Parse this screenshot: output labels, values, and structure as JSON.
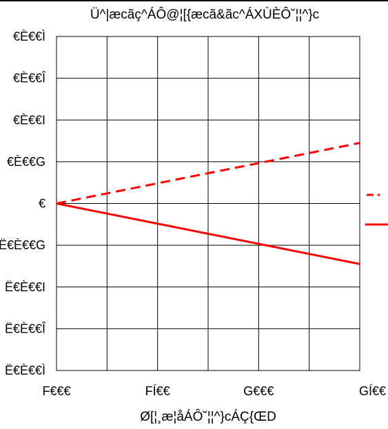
{
  "chart_data": {
    "type": "line",
    "title": "Ü^|æcãç^ÁÔ@¦[{æcã&ãc^ÁXÙÈÔ˘¦¦^}c",
    "xlabel": "Ø[¦¸æ¦åÁÔ˘¦¦^}cÁÇ{ŒD",
    "ylabel": "",
    "x_tick_values": [
      1000,
      1500,
      2000,
      2500
    ],
    "x_tick_labels": [
      "F€€€",
      "FÍ€€",
      "G€€€",
      "GÍ€€"
    ],
    "y_tick_values": [
      4,
      3,
      2,
      1,
      0,
      -1,
      -2,
      -3,
      -4
    ],
    "y_tick_labels": [
      "€È€€Ì",
      "€È€€Î",
      "€È€€I",
      "€È€€G",
      "€",
      "Ë€È€€G",
      "Ë€È€€I",
      "Ë€È€€Î",
      "Ë€È€€Ì"
    ],
    "xlim": [
      1000,
      2500
    ],
    "ylim": [
      -4,
      4
    ],
    "grid": true,
    "legend_position": "right",
    "series": [
      {
        "style": "dashed",
        "color": "#ff0000",
        "x": [
          1000,
          2500
        ],
        "y": [
          0,
          1.45
        ]
      },
      {
        "style": "solid",
        "color": "#ff0000",
        "x": [
          1000,
          2500
        ],
        "y": [
          0,
          -1.45
        ]
      }
    ]
  },
  "colors": {
    "series_line": "#ff0000",
    "axis": "#000000",
    "grid": "#000000"
  }
}
